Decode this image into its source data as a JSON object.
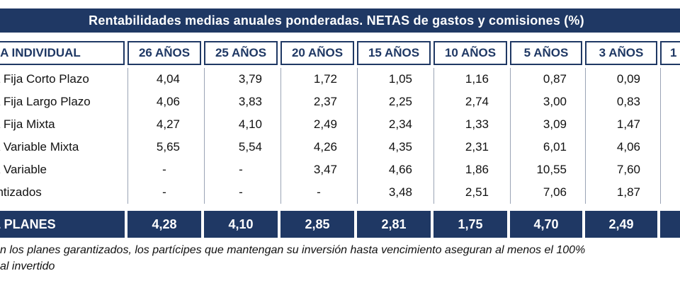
{
  "title": "Rentabilidades medias anuales ponderadas. NETAS de gastos y comisiones (%)",
  "headers": [
    "MA INDIVIDUAL",
    "26 AÑOS",
    "25 AÑOS",
    "20 AÑOS",
    "15 AÑOS",
    "10 AÑOS",
    "5 AÑOS",
    "3 AÑOS",
    "1"
  ],
  "rows": [
    {
      "label": "ta Fija Corto Plazo",
      "values": [
        "4,04",
        "3,79",
        "1,72",
        "1,05",
        "1,16",
        "0,87",
        "0,09"
      ]
    },
    {
      "label": "ta Fija Largo Plazo",
      "values": [
        "4,06",
        "3,83",
        "2,37",
        "2,25",
        "2,74",
        "3,00",
        "0,83"
      ]
    },
    {
      "label": "ta Fija Mixta",
      "values": [
        "4,27",
        "4,10",
        "2,49",
        "2,34",
        "1,33",
        "3,09",
        "1,47"
      ]
    },
    {
      "label": "ta Variable Mixta",
      "values": [
        "5,65",
        "5,54",
        "4,26",
        "4,35",
        "2,31",
        "6,01",
        "4,06"
      ]
    },
    {
      "label": "ta Variable",
      "values": [
        "-",
        "-",
        "3,47",
        "4,66",
        "1,86",
        "10,55",
        "7,60"
      ]
    },
    {
      "label": "antizados",
      "values": [
        "-",
        "-",
        "-",
        "3,48",
        "2,51",
        "7,06",
        "1,87"
      ]
    }
  ],
  "total": {
    "label": "L PLANES",
    "values": [
      "4,28",
      "4,10",
      "2,85",
      "2,81",
      "1,75",
      "4,70",
      "2,49"
    ]
  },
  "note": [
    "n los planes garantizados, los partícipes que mantengan su inversión hasta vencimiento aseguran al menos el 100%",
    "al invertido"
  ],
  "colors": {
    "navy": "#1f3864",
    "white": "#ffffff"
  }
}
